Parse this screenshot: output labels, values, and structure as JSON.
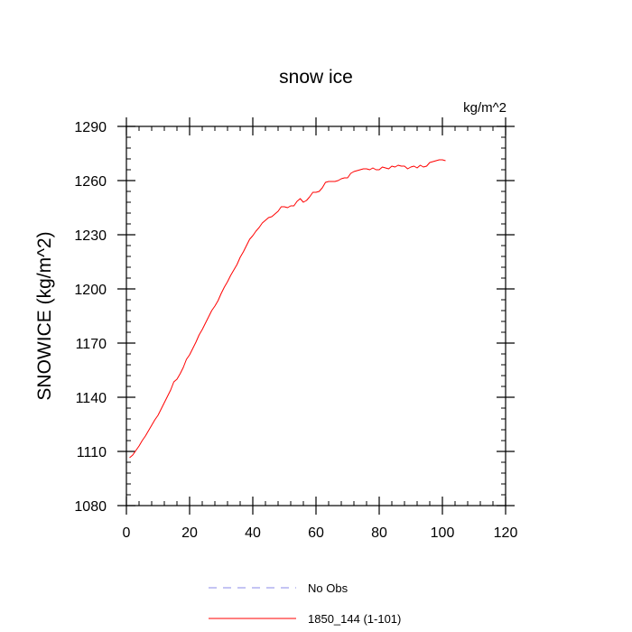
{
  "chart_data": {
    "type": "line",
    "title": "snow ice",
    "units_label": "kg/m^2",
    "ylabel": "SNOWICE  (kg/m^2)",
    "xlabel": "",
    "xlim": [
      0,
      120
    ],
    "ylim": [
      1080,
      1290
    ],
    "xticks": [
      0,
      20,
      40,
      60,
      80,
      100,
      120
    ],
    "yticks": [
      1080,
      1110,
      1140,
      1170,
      1200,
      1230,
      1260,
      1290
    ],
    "x_tick_labels": [
      "0",
      "20",
      "40",
      "60",
      "80",
      "100",
      "120"
    ],
    "y_tick_labels": [
      "1080",
      "1110",
      "1140",
      "1170",
      "1200",
      "1230",
      "1260",
      "1290"
    ],
    "grid": false,
    "legend_position": "bottom",
    "legend": [
      {
        "label": "No Obs",
        "color": "#8a8ae8",
        "dash": true
      },
      {
        "label": "1850_144 (1-101)",
        "color": "#ff0000",
        "dash": false
      }
    ],
    "series": [
      {
        "name": "1850_144 (1-101)",
        "color": "#ff0000",
        "x": [
          1,
          2,
          3,
          4,
          5,
          6,
          7,
          8,
          9,
          10,
          11,
          12,
          13,
          14,
          15,
          16,
          17,
          18,
          19,
          20,
          21,
          22,
          23,
          24,
          25,
          26,
          27,
          28,
          29,
          30,
          31,
          32,
          33,
          34,
          35,
          36,
          37,
          38,
          39,
          40,
          41,
          42,
          43,
          44,
          45,
          46,
          47,
          48,
          49,
          50,
          51,
          52,
          53,
          54,
          55,
          56,
          57,
          58,
          59,
          60,
          61,
          62,
          63,
          64,
          65,
          66,
          67,
          68,
          69,
          70,
          71,
          72,
          73,
          74,
          75,
          76,
          77,
          78,
          79,
          80,
          81,
          82,
          83,
          84,
          85,
          86,
          87,
          88,
          89,
          90,
          91,
          92,
          93,
          94,
          95,
          96,
          97,
          98,
          99,
          100,
          101
        ],
        "y": [
          1106.5,
          1108,
          1110.5,
          1113,
          1116,
          1118.5,
          1121.5,
          1124.5,
          1127.5,
          1130,
          1133.5,
          1137,
          1140.5,
          1144,
          1148.5,
          1150,
          1153,
          1156.5,
          1161,
          1163.5,
          1167,
          1170.5,
          1174.5,
          1177.5,
          1181,
          1184.5,
          1188,
          1190.5,
          1193.5,
          1197.5,
          1201,
          1204,
          1207.5,
          1210.5,
          1213.5,
          1217.5,
          1220.5,
          1224,
          1227.5,
          1229.5,
          1232,
          1234,
          1236.5,
          1238,
          1239.5,
          1240,
          1241.5,
          1243,
          1245.5,
          1245.5,
          1245,
          1246,
          1246,
          1248.5,
          1250,
          1248,
          1249,
          1251,
          1253.5,
          1253.5,
          1254,
          1256,
          1259,
          1259.5,
          1259.5,
          1259.5,
          1260,
          1261,
          1261.5,
          1261.5,
          1264,
          1265,
          1265.5,
          1266,
          1266.5,
          1266.5,
          1266,
          1267,
          1266,
          1266,
          1267.5,
          1267,
          1266.5,
          1268,
          1267.5,
          1268.5,
          1268,
          1268,
          1266.5,
          1267.5,
          1268,
          1267,
          1268.5,
          1267.5,
          1268,
          1270,
          1270.5,
          1271,
          1271.5,
          1271.5,
          1271
        ]
      }
    ]
  }
}
